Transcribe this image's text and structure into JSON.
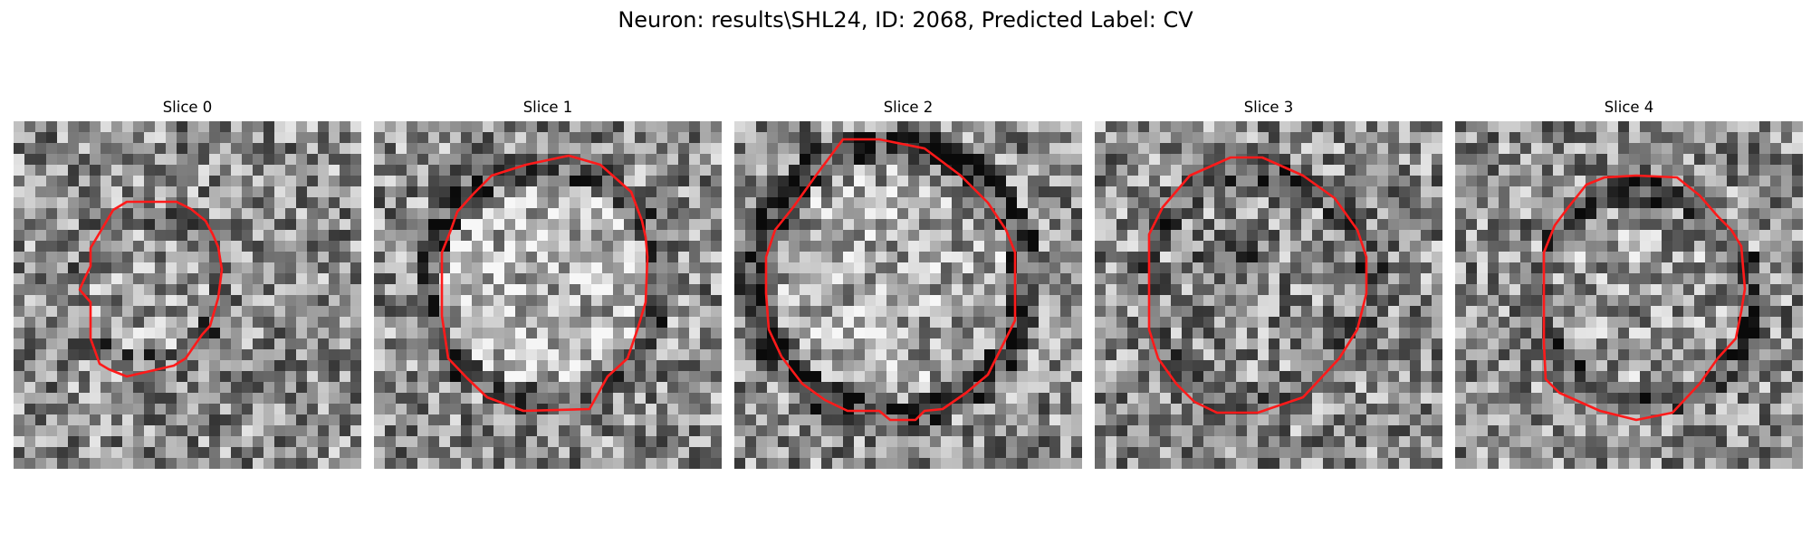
{
  "figure": {
    "title": "Neuron: results\\SHL24, ID: 2068, Predicted Label: CV",
    "contour_color": "#ff1a1a"
  },
  "panels": [
    {
      "title": "Slice 0"
    },
    {
      "title": "Slice 1"
    },
    {
      "title": "Slice 2"
    },
    {
      "title": "Slice 3"
    },
    {
      "title": "Slice 4"
    }
  ]
}
